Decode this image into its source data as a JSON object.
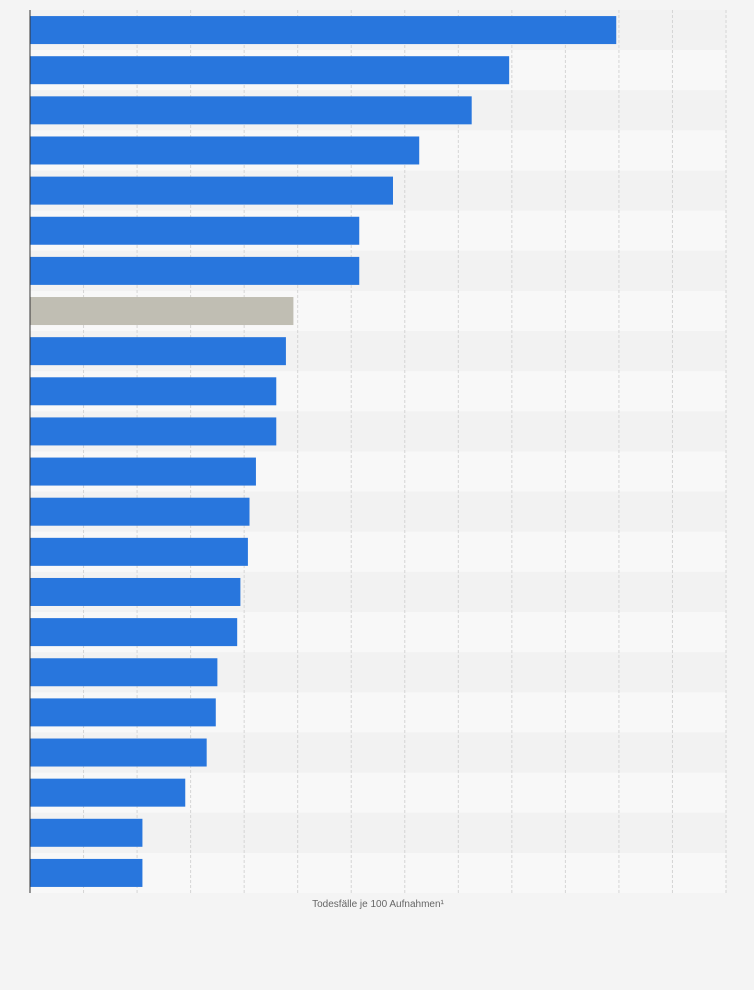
{
  "chart_data": {
    "type": "bar",
    "orientation": "horizontal",
    "title": "",
    "xlabel": "Todesfälle je 100 Aufnahmen¹",
    "ylabel": "",
    "xlim": [
      0,
      13
    ],
    "grid": true,
    "values": [
      10.95,
      8.95,
      8.25,
      7.27,
      6.78,
      6.15,
      6.15,
      4.92,
      4.78,
      4.6,
      4.6,
      4.22,
      4.1,
      4.07,
      3.93,
      3.87,
      3.5,
      3.47,
      3.3,
      2.9,
      2.1,
      2.1
    ],
    "highlight_index": 7,
    "colors": {
      "bar": "#2876dd",
      "highlight": "#c0beb3",
      "grid": "#d5d5d5",
      "axis": "#333333"
    }
  }
}
